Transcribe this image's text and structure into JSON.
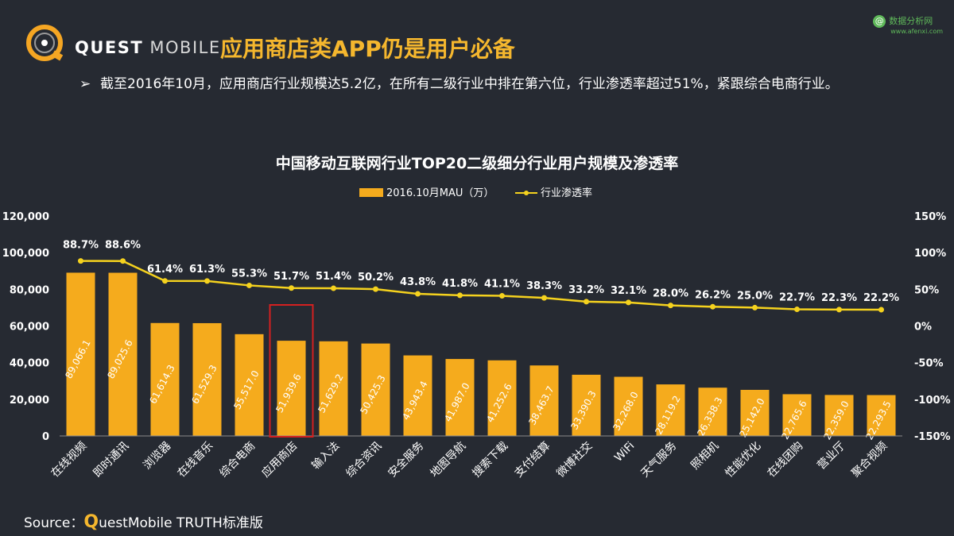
{
  "header": {
    "brand_primary": "QUEST",
    "brand_secondary": "MOBILE",
    "headline": "应用商店类APP仍是用户必备",
    "watermark_name": "数据分析网",
    "watermark_url": "www.afenxi.com"
  },
  "bullet": {
    "mark": "➢",
    "text": "截至2016年10月，应用商店行业规模达5.2亿，在所有二级行业中排在第六位，行业渗透率超过51%，紧跟综合电商行业。"
  },
  "source": {
    "label": "Source：",
    "q_letter": "Q",
    "rest": "uestMobile TRUTH标准版"
  },
  "colors": {
    "background": "#262a32",
    "bar": "#f5ab1d",
    "line": "#f5d21e",
    "headline": "#f5b72e",
    "highlight_box": "#d42020"
  },
  "chart_data": {
    "type": "bar",
    "title": "中国移动互联网行业TOP20二级细分行业用户规模及渗透率",
    "legend_position": "top-center",
    "categories": [
      "在线视频",
      "即时通讯",
      "浏览器",
      "在线音乐",
      "综合电商",
      "应用商店",
      "输入法",
      "综合资讯",
      "安全服务",
      "地图导航",
      "搜索下载",
      "支付结算",
      "微博社交",
      "WiFi",
      "天气服务",
      "照相机",
      "性能优化",
      "在线团购",
      "营业厅",
      "聚合视频"
    ],
    "series": [
      {
        "name": "2016.10月MAU（万）",
        "type": "bar",
        "axis": "left",
        "values": [
          89066.1,
          89025.6,
          61614.3,
          61529.3,
          55517.0,
          51939.6,
          51629.2,
          50425.3,
          43943.4,
          41987.0,
          41252.6,
          38463.7,
          33390.3,
          32268.0,
          28119.2,
          26338.3,
          25142.0,
          22765.6,
          22359.0,
          22293.5
        ],
        "labels": [
          "89,066.1",
          "89,025.6",
          "61,614.3",
          "61,529.3",
          "55,517.0",
          "51,939.6",
          "51,629.2",
          "50,425.3",
          "43,943.4",
          "41,987.0",
          "41,252.6",
          "38,463.7",
          "33,390.3",
          "32,268.0",
          "28,119.2",
          "26,338.3",
          "25,142.0",
          "22,765.6",
          "22,359.0",
          "22,293.5"
        ]
      },
      {
        "name": "行业渗透率",
        "type": "line",
        "axis": "right",
        "values": [
          88.7,
          88.6,
          61.4,
          61.3,
          55.3,
          51.7,
          51.4,
          50.2,
          43.8,
          41.8,
          41.1,
          38.3,
          33.2,
          32.1,
          28.0,
          26.2,
          25.0,
          22.7,
          22.3,
          22.2
        ],
        "labels": [
          "88.7%",
          "88.6%",
          "61.4%",
          "61.3%",
          "55.3%",
          "51.7%",
          "51.4%",
          "50.2%",
          "43.8%",
          "41.8%",
          "41.1%",
          "38.3%",
          "33.2%",
          "32.1%",
          "28.0%",
          "26.2%",
          "25.0%",
          "22.7%",
          "22.3%",
          "22.2%"
        ]
      }
    ],
    "left_axis": {
      "min": 0,
      "max": 120000,
      "ticks": [
        0,
        20000,
        40000,
        60000,
        80000,
        100000,
        120000
      ],
      "tick_labels": [
        "0",
        "20,000",
        "40,000",
        "60,000",
        "80,000",
        "100,000",
        "120,000"
      ]
    },
    "right_axis": {
      "min": -150,
      "max": 150,
      "ticks": [
        -150,
        -100,
        -50,
        0,
        50,
        100,
        150
      ],
      "tick_labels": [
        "-150%",
        "-100%",
        "-50%",
        "0%",
        "50%",
        "100%",
        "150%"
      ]
    },
    "highlight_category": "应用商店",
    "grid": false
  }
}
